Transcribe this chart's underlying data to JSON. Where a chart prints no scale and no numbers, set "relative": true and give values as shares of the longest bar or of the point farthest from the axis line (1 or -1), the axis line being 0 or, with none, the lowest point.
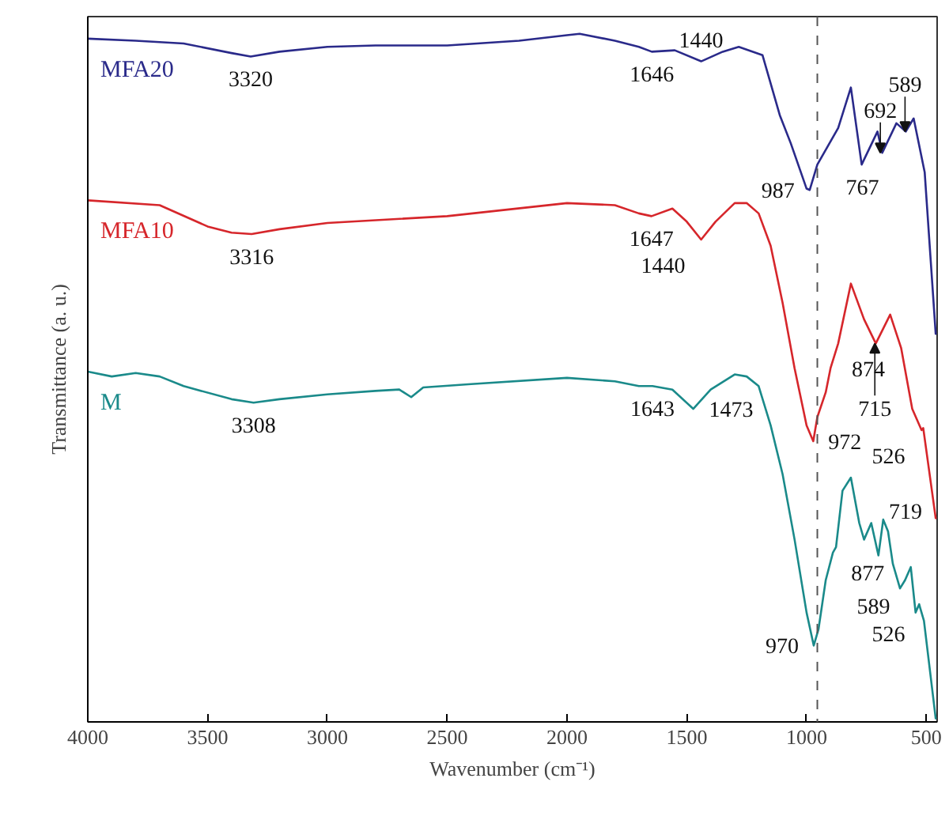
{
  "chart_data": {
    "type": "line",
    "relative": true,
    "xlabel": "Wavenumber (cm⁻¹)",
    "ylabel": "Transmittance (a. u.)",
    "xlim": [
      4000,
      455
    ],
    "xticks": [
      4000,
      3500,
      3000,
      2500,
      2000,
      1500,
      1000,
      500
    ],
    "grid": false,
    "tick_labels": "x",
    "line_style": "solid",
    "marker": "none",
    "series": [
      {
        "name": "MFA20",
        "color": "#2a2a8a",
        "x": [
          4000,
          3800,
          3600,
          3400,
          3320,
          3200,
          3000,
          2800,
          2500,
          2200,
          2000,
          1947,
          1800,
          1700,
          1646,
          1550,
          1440,
          1350,
          1283,
          1184,
          1112,
          1066,
          1000,
          987,
          955,
          868,
          815,
          770,
          704,
          684,
          625,
          586,
          553,
          507,
          461
        ],
        "values": [
          0.993,
          0.99,
          0.986,
          0.972,
          0.967,
          0.974,
          0.981,
          0.983,
          0.983,
          0.99,
          0.998,
          1.0,
          0.99,
          0.981,
          0.974,
          0.976,
          0.96,
          0.974,
          0.981,
          0.969,
          0.882,
          0.841,
          0.775,
          0.773,
          0.81,
          0.863,
          0.922,
          0.81,
          0.858,
          0.827,
          0.87,
          0.858,
          0.877,
          0.799,
          0.564
        ]
      },
      {
        "name": "MFA10",
        "color": "#d6262b",
        "x": [
          4000,
          3700,
          3500,
          3400,
          3316,
          3200,
          3000,
          2500,
          2000,
          1800,
          1700,
          1647,
          1560,
          1500,
          1440,
          1380,
          1300,
          1250,
          1200,
          1150,
          1100,
          1050,
          1000,
          972,
          955,
          920,
          900,
          868,
          815,
          760,
          711,
          651,
          605,
          559,
          520,
          513,
          461
        ],
        "values": [
          0.758,
          0.751,
          0.72,
          0.711,
          0.709,
          0.716,
          0.725,
          0.735,
          0.754,
          0.751,
          0.739,
          0.735,
          0.746,
          0.727,
          0.701,
          0.727,
          0.754,
          0.754,
          0.739,
          0.692,
          0.609,
          0.514,
          0.431,
          0.408,
          0.443,
          0.479,
          0.514,
          0.55,
          0.637,
          0.585,
          0.55,
          0.592,
          0.543,
          0.455,
          0.424,
          0.427,
          0.296
        ]
      },
      {
        "name": "M",
        "color": "#1a8a8a",
        "x": [
          4000,
          3900,
          3800,
          3700,
          3600,
          3400,
          3308,
          3200,
          3000,
          2800,
          2700,
          2650,
          2600,
          2400,
          2000,
          1800,
          1700,
          1643,
          1560,
          1473,
          1400,
          1300,
          1250,
          1200,
          1150,
          1100,
          1050,
          1000,
          970,
          950,
          920,
          890,
          877,
          850,
          815,
          780,
          760,
          730,
          700,
          680,
          660,
          640,
          610,
          589,
          565,
          545,
          530,
          526,
          510,
          461
        ],
        "values": [
          0.509,
          0.502,
          0.507,
          0.502,
          0.488,
          0.469,
          0.464,
          0.469,
          0.476,
          0.481,
          0.483,
          0.472,
          0.486,
          0.491,
          0.5,
          0.495,
          0.488,
          0.488,
          0.483,
          0.455,
          0.483,
          0.505,
          0.502,
          0.488,
          0.431,
          0.36,
          0.265,
          0.159,
          0.111,
          0.135,
          0.206,
          0.246,
          0.254,
          0.336,
          0.355,
          0.289,
          0.265,
          0.289,
          0.242,
          0.294,
          0.277,
          0.23,
          0.194,
          0.206,
          0.225,
          0.159,
          0.171,
          0.166,
          0.147,
          0.005
        ]
      }
    ],
    "ref_lines": [
      {
        "axis": "x",
        "value": 955,
        "line_style": "dashed",
        "color": "#555555"
      }
    ],
    "annotations": [
      {
        "text": "3320",
        "x": 3320,
        "y": 0.967
      },
      {
        "text": "1646",
        "x": 1646,
        "y": 0.974
      },
      {
        "text": "1440",
        "x": 1440,
        "y": 0.96
      },
      {
        "text": "589",
        "x": 589,
        "y": 0.858
      },
      {
        "text": "987",
        "x": 987,
        "y": 0.773
      },
      {
        "text": "767",
        "x": 767,
        "y": 0.81
      },
      {
        "text": "692",
        "x": 692,
        "y": 0.827
      },
      {
        "text": "3316",
        "x": 3316,
        "y": 0.709
      },
      {
        "text": "1647",
        "x": 1647,
        "y": 0.735
      },
      {
        "text": "1440",
        "x": 1440,
        "y": 0.701
      },
      {
        "text": "874",
        "x": 874,
        "y": 0.55
      },
      {
        "text": "715",
        "x": 715,
        "y": 0.55
      },
      {
        "text": "972",
        "x": 972,
        "y": 0.408
      },
      {
        "text": "526",
        "x": 526,
        "y": 0.424
      },
      {
        "text": "3308",
        "x": 3308,
        "y": 0.464
      },
      {
        "text": "1643",
        "x": 1643,
        "y": 0.488
      },
      {
        "text": "1473",
        "x": 1473,
        "y": 0.455
      },
      {
        "text": "877",
        "x": 877,
        "y": 0.254
      },
      {
        "text": "719",
        "x": 719,
        "y": 0.27
      },
      {
        "text": "970",
        "x": 970,
        "y": 0.111
      },
      {
        "text": "589",
        "x": 589,
        "y": 0.206
      },
      {
        "text": "526",
        "x": 526,
        "y": 0.166
      }
    ]
  }
}
